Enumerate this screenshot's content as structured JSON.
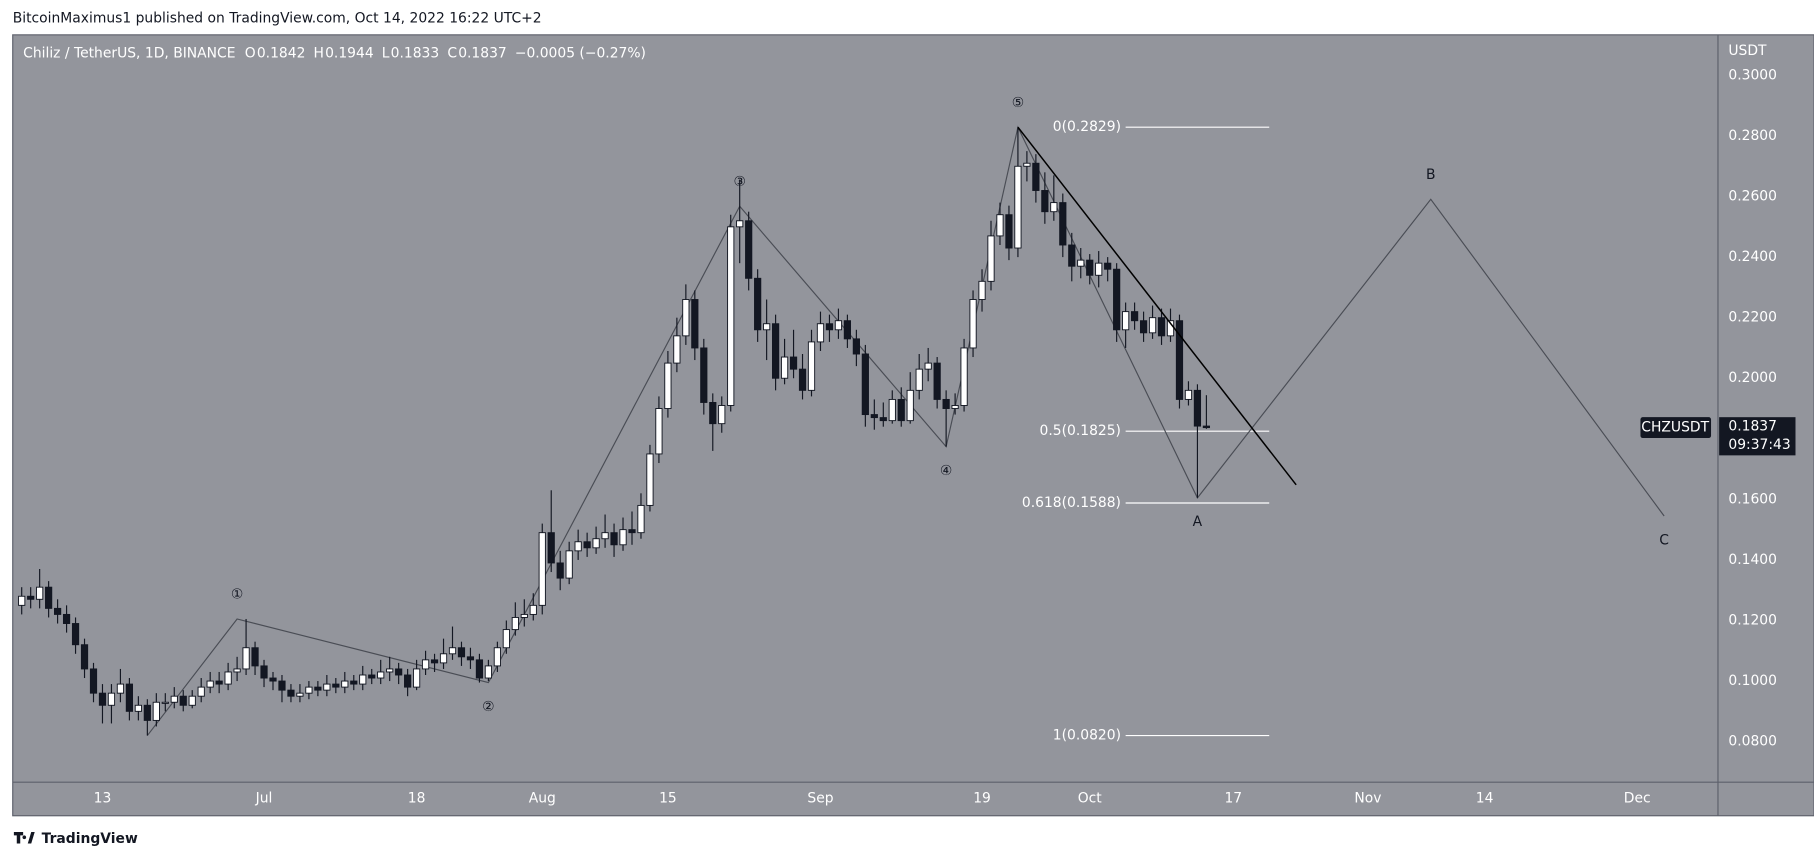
{
  "published": "BitcoinMaximus1 published on TradingView.com, Oct 14, 2022 16:22 UTC+2",
  "footer": "TradingView",
  "chart_data": {
    "type": "candlestick",
    "symbol": "Chiliz / TetherUS, 1D, BINANCE",
    "ohlc_letters": [
      "O",
      "H",
      "L",
      "C"
    ],
    "change": "−0.0005 (−0.27%)",
    "axis_unit": "USDT",
    "ticker": "CHZUSDT",
    "countdown": "09:37:43",
    "up_color": "#ffffff",
    "down_color": "#131722",
    "grid": false,
    "xlim": [
      "2022-06-03",
      "2022-12-10"
    ],
    "ylim": [
      0.0666,
      0.3134
    ],
    "yticks": [
      {
        "value": 0.08,
        "label": "0.0800"
      },
      {
        "value": 0.1,
        "label": "0.1000"
      },
      {
        "value": 0.12,
        "label": "0.1200"
      },
      {
        "value": 0.14,
        "label": "0.1400"
      },
      {
        "value": 0.16,
        "label": "0.1600"
      },
      {
        "value": 0.18,
        "label": "0.1800"
      },
      {
        "value": 0.2,
        "label": "0.2000"
      },
      {
        "value": 0.22,
        "label": "0.2200"
      },
      {
        "value": 0.24,
        "label": "0.2400"
      },
      {
        "value": 0.26,
        "label": "0.2600"
      },
      {
        "value": 0.28,
        "label": "0.2800"
      },
      {
        "value": 0.3,
        "label": "0.3000"
      }
    ],
    "xticks": [
      {
        "value": "2022-06-13",
        "label": "13"
      },
      {
        "value": "2022-07-01",
        "label": "Jul"
      },
      {
        "value": "2022-07-18",
        "label": "18"
      },
      {
        "value": "2022-08-01",
        "label": "Aug"
      },
      {
        "value": "2022-08-15",
        "label": "15"
      },
      {
        "value": "2022-09-01",
        "label": "Sep"
      },
      {
        "value": "2022-09-19",
        "label": "19"
      },
      {
        "value": "2022-10-01",
        "label": "Oct"
      },
      {
        "value": "2022-10-17",
        "label": "17"
      },
      {
        "value": "2022-11-01",
        "label": "Nov"
      },
      {
        "value": "2022-11-14",
        "label": "14"
      },
      {
        "value": "2022-12-01",
        "label": "Dec"
      }
    ],
    "x": [
      "2022-06-04",
      "2022-06-05",
      "2022-06-06",
      "2022-06-07",
      "2022-06-08",
      "2022-06-09",
      "2022-06-10",
      "2022-06-11",
      "2022-06-12",
      "2022-06-13",
      "2022-06-14",
      "2022-06-15",
      "2022-06-16",
      "2022-06-17",
      "2022-06-18",
      "2022-06-19",
      "2022-06-20",
      "2022-06-21",
      "2022-06-22",
      "2022-06-23",
      "2022-06-24",
      "2022-06-25",
      "2022-06-26",
      "2022-06-27",
      "2022-06-28",
      "2022-06-29",
      "2022-06-30",
      "2022-07-01",
      "2022-07-02",
      "2022-07-03",
      "2022-07-04",
      "2022-07-05",
      "2022-07-06",
      "2022-07-07",
      "2022-07-08",
      "2022-07-09",
      "2022-07-10",
      "2022-07-11",
      "2022-07-12",
      "2022-07-13",
      "2022-07-14",
      "2022-07-15",
      "2022-07-16",
      "2022-07-17",
      "2022-07-18",
      "2022-07-19",
      "2022-07-20",
      "2022-07-21",
      "2022-07-22",
      "2022-07-23",
      "2022-07-24",
      "2022-07-25",
      "2022-07-26",
      "2022-07-27",
      "2022-07-28",
      "2022-07-29",
      "2022-07-30",
      "2022-07-31",
      "2022-08-01",
      "2022-08-02",
      "2022-08-03",
      "2022-08-04",
      "2022-08-05",
      "2022-08-06",
      "2022-08-07",
      "2022-08-08",
      "2022-08-09",
      "2022-08-10",
      "2022-08-11",
      "2022-08-12",
      "2022-08-13",
      "2022-08-14",
      "2022-08-15",
      "2022-08-16",
      "2022-08-17",
      "2022-08-18",
      "2022-08-19",
      "2022-08-20",
      "2022-08-21",
      "2022-08-22",
      "2022-08-23",
      "2022-08-24",
      "2022-08-25",
      "2022-08-26",
      "2022-08-27",
      "2022-08-28",
      "2022-08-29",
      "2022-08-30",
      "2022-08-31",
      "2022-09-01",
      "2022-09-02",
      "2022-09-03",
      "2022-09-04",
      "2022-09-05",
      "2022-09-06",
      "2022-09-07",
      "2022-09-08",
      "2022-09-09",
      "2022-09-10",
      "2022-09-11",
      "2022-09-12",
      "2022-09-13",
      "2022-09-14",
      "2022-09-15",
      "2022-09-16",
      "2022-09-17",
      "2022-09-18",
      "2022-09-19",
      "2022-09-20",
      "2022-09-21",
      "2022-09-22",
      "2022-09-23",
      "2022-09-24",
      "2022-09-25",
      "2022-09-26",
      "2022-09-27",
      "2022-09-28",
      "2022-09-29",
      "2022-09-30",
      "2022-10-01",
      "2022-10-02",
      "2022-10-03",
      "2022-10-04",
      "2022-10-05",
      "2022-10-06",
      "2022-10-07",
      "2022-10-08",
      "2022-10-09",
      "2022-10-10",
      "2022-10-11",
      "2022-10-12",
      "2022-10-13",
      "2022-10-14"
    ],
    "open": [
      0.125,
      0.128,
      0.127,
      0.131,
      0.124,
      0.122,
      0.119,
      0.112,
      0.104,
      0.096,
      0.092,
      0.096,
      0.099,
      0.09,
      0.092,
      0.087,
      0.093,
      0.093,
      0.095,
      0.092,
      0.095,
      0.098,
      0.1,
      0.099,
      0.103,
      0.104,
      0.111,
      0.105,
      0.101,
      0.1,
      0.097,
      0.095,
      0.096,
      0.098,
      0.097,
      0.099,
      0.098,
      0.1,
      0.099,
      0.102,
      0.101,
      0.103,
      0.104,
      0.102,
      0.098,
      0.104,
      0.107,
      0.106,
      0.109,
      0.111,
      0.108,
      0.107,
      0.101,
      0.105,
      0.111,
      0.117,
      0.121,
      0.122,
      0.125,
      0.149,
      0.139,
      0.134,
      0.143,
      0.146,
      0.144,
      0.147,
      0.149,
      0.145,
      0.15,
      0.149,
      0.158,
      0.175,
      0.19,
      0.205,
      0.214,
      0.226,
      0.21,
      0.192,
      0.185,
      0.191,
      0.25,
      0.252,
      0.233,
      0.216,
      0.218,
      0.2,
      0.207,
      0.203,
      0.196,
      0.212,
      0.218,
      0.216,
      0.219,
      0.213,
      0.208,
      0.188,
      0.187,
      0.186,
      0.193,
      0.186,
      0.196,
      0.203,
      0.205,
      0.193,
      0.19,
      0.191,
      0.21,
      0.226,
      0.232,
      0.247,
      0.254,
      0.243,
      0.27,
      0.271,
      0.262,
      0.255,
      0.258,
      0.244,
      0.237,
      0.239,
      0.234,
      0.238,
      0.236,
      0.216,
      0.222,
      0.219,
      0.215,
      0.22,
      0.214,
      0.219,
      0.193,
      0.196,
      0.1842
    ],
    "high": [
      0.131,
      0.131,
      0.137,
      0.133,
      0.127,
      0.125,
      0.121,
      0.114,
      0.106,
      0.099,
      0.099,
      0.104,
      0.101,
      0.095,
      0.094,
      0.096,
      0.096,
      0.098,
      0.097,
      0.097,
      0.101,
      0.103,
      0.103,
      0.106,
      0.108,
      0.1205,
      0.113,
      0.107,
      0.103,
      0.102,
      0.099,
      0.099,
      0.1,
      0.1,
      0.102,
      0.101,
      0.103,
      0.102,
      0.105,
      0.104,
      0.107,
      0.108,
      0.106,
      0.104,
      0.107,
      0.11,
      0.109,
      0.114,
      0.118,
      0.113,
      0.111,
      0.109,
      0.107,
      0.113,
      0.12,
      0.126,
      0.127,
      0.129,
      0.152,
      0.163,
      0.143,
      0.146,
      0.15,
      0.149,
      0.151,
      0.155,
      0.152,
      0.154,
      0.156,
      0.162,
      0.178,
      0.194,
      0.209,
      0.22,
      0.231,
      0.229,
      0.213,
      0.195,
      0.194,
      0.254,
      0.2656,
      0.255,
      0.236,
      0.226,
      0.221,
      0.213,
      0.216,
      0.208,
      0.216,
      0.222,
      0.221,
      0.223,
      0.221,
      0.216,
      0.211,
      0.193,
      0.192,
      0.196,
      0.197,
      0.202,
      0.208,
      0.21,
      0.207,
      0.196,
      0.195,
      0.213,
      0.229,
      0.236,
      0.252,
      0.258,
      0.257,
      0.2829,
      0.275,
      0.274,
      0.268,
      0.267,
      0.261,
      0.248,
      0.243,
      0.241,
      0.242,
      0.24,
      0.238,
      0.225,
      0.225,
      0.222,
      0.224,
      0.223,
      0.223,
      0.221,
      0.199,
      0.198,
      0.1944
    ],
    "low": [
      0.122,
      0.124,
      0.124,
      0.121,
      0.119,
      0.116,
      0.109,
      0.101,
      0.093,
      0.086,
      0.086,
      0.093,
      0.087,
      0.087,
      0.082,
      0.085,
      0.09,
      0.091,
      0.09,
      0.091,
      0.093,
      0.096,
      0.096,
      0.097,
      0.1,
      0.102,
      0.102,
      0.098,
      0.097,
      0.093,
      0.093,
      0.093,
      0.094,
      0.095,
      0.095,
      0.096,
      0.096,
      0.097,
      0.097,
      0.099,
      0.099,
      0.1,
      0.099,
      0.095,
      0.097,
      0.102,
      0.103,
      0.104,
      0.107,
      0.105,
      0.104,
      0.0995,
      0.1,
      0.103,
      0.109,
      0.115,
      0.118,
      0.12,
      0.122,
      0.136,
      0.13,
      0.132,
      0.14,
      0.141,
      0.142,
      0.144,
      0.141,
      0.143,
      0.145,
      0.147,
      0.156,
      0.172,
      0.187,
      0.202,
      0.211,
      0.206,
      0.188,
      0.176,
      0.182,
      0.189,
      0.238,
      0.229,
      0.212,
      0.206,
      0.196,
      0.198,
      0.2,
      0.193,
      0.194,
      0.209,
      0.212,
      0.213,
      0.21,
      0.204,
      0.184,
      0.183,
      0.184,
      0.185,
      0.184,
      0.185,
      0.193,
      0.199,
      0.19,
      0.1774,
      0.188,
      0.189,
      0.207,
      0.222,
      0.229,
      0.244,
      0.239,
      0.24,
      0.265,
      0.258,
      0.251,
      0.252,
      0.24,
      0.232,
      0.233,
      0.231,
      0.23,
      0.232,
      0.212,
      0.21,
      0.216,
      0.212,
      0.213,
      0.211,
      0.212,
      0.19,
      0.191,
      0.1605,
      0.1833
    ],
    "close": [
      0.128,
      0.127,
      0.131,
      0.124,
      0.122,
      0.119,
      0.112,
      0.104,
      0.096,
      0.092,
      0.096,
      0.099,
      0.09,
      0.092,
      0.087,
      0.093,
      0.093,
      0.095,
      0.092,
      0.095,
      0.098,
      0.1,
      0.099,
      0.103,
      0.104,
      0.111,
      0.105,
      0.101,
      0.1,
      0.097,
      0.095,
      0.096,
      0.098,
      0.097,
      0.099,
      0.098,
      0.1,
      0.099,
      0.102,
      0.101,
      0.103,
      0.104,
      0.102,
      0.098,
      0.104,
      0.107,
      0.106,
      0.109,
      0.111,
      0.108,
      0.107,
      0.101,
      0.105,
      0.111,
      0.117,
      0.121,
      0.122,
      0.125,
      0.149,
      0.139,
      0.134,
      0.143,
      0.146,
      0.144,
      0.147,
      0.149,
      0.145,
      0.15,
      0.149,
      0.158,
      0.175,
      0.19,
      0.205,
      0.214,
      0.226,
      0.21,
      0.192,
      0.185,
      0.191,
      0.25,
      0.252,
      0.233,
      0.216,
      0.218,
      0.2,
      0.207,
      0.203,
      0.196,
      0.212,
      0.218,
      0.216,
      0.219,
      0.213,
      0.208,
      0.188,
      0.187,
      0.186,
      0.193,
      0.186,
      0.196,
      0.203,
      0.205,
      0.193,
      0.19,
      0.191,
      0.21,
      0.226,
      0.232,
      0.247,
      0.254,
      0.243,
      0.27,
      0.271,
      0.262,
      0.255,
      0.258,
      0.244,
      0.237,
      0.239,
      0.234,
      0.238,
      0.236,
      0.216,
      0.222,
      0.219,
      0.215,
      0.22,
      0.214,
      0.219,
      0.193,
      0.196,
      0.1842,
      0.1837
    ],
    "waves": {
      "x": [
        "2022-06-18",
        "2022-06-28",
        "2022-07-26",
        "2022-08-23",
        "2022-09-15",
        "2022-09-23",
        "2022-10-13",
        "2022-11-08",
        "2022-12-04"
      ],
      "y": [
        0.082,
        0.1205,
        0.0995,
        0.2568,
        0.1774,
        0.2829,
        0.1605,
        0.2591,
        0.1545
      ],
      "labels": [
        null,
        "①",
        "②",
        "③",
        "④",
        "⑤",
        "A",
        "B",
        "C"
      ],
      "color": "#4a4d55"
    },
    "trendline": {
      "x": [
        "2022-09-23",
        "2022-10-24"
      ],
      "y": [
        0.2829,
        0.1648
      ],
      "color": "#000000"
    },
    "fib": {
      "x": [
        "2022-10-05",
        "2022-10-21"
      ],
      "color": "#ffffff",
      "levels": [
        {
          "value": 0.2829,
          "label": "0(0.2829)"
        },
        {
          "value": 0.1825,
          "label": "0.5(0.1825)"
        },
        {
          "value": 0.1588,
          "label": "0.618(0.1588)"
        },
        {
          "value": 0.082,
          "label": "1(0.0820)"
        }
      ]
    }
  }
}
